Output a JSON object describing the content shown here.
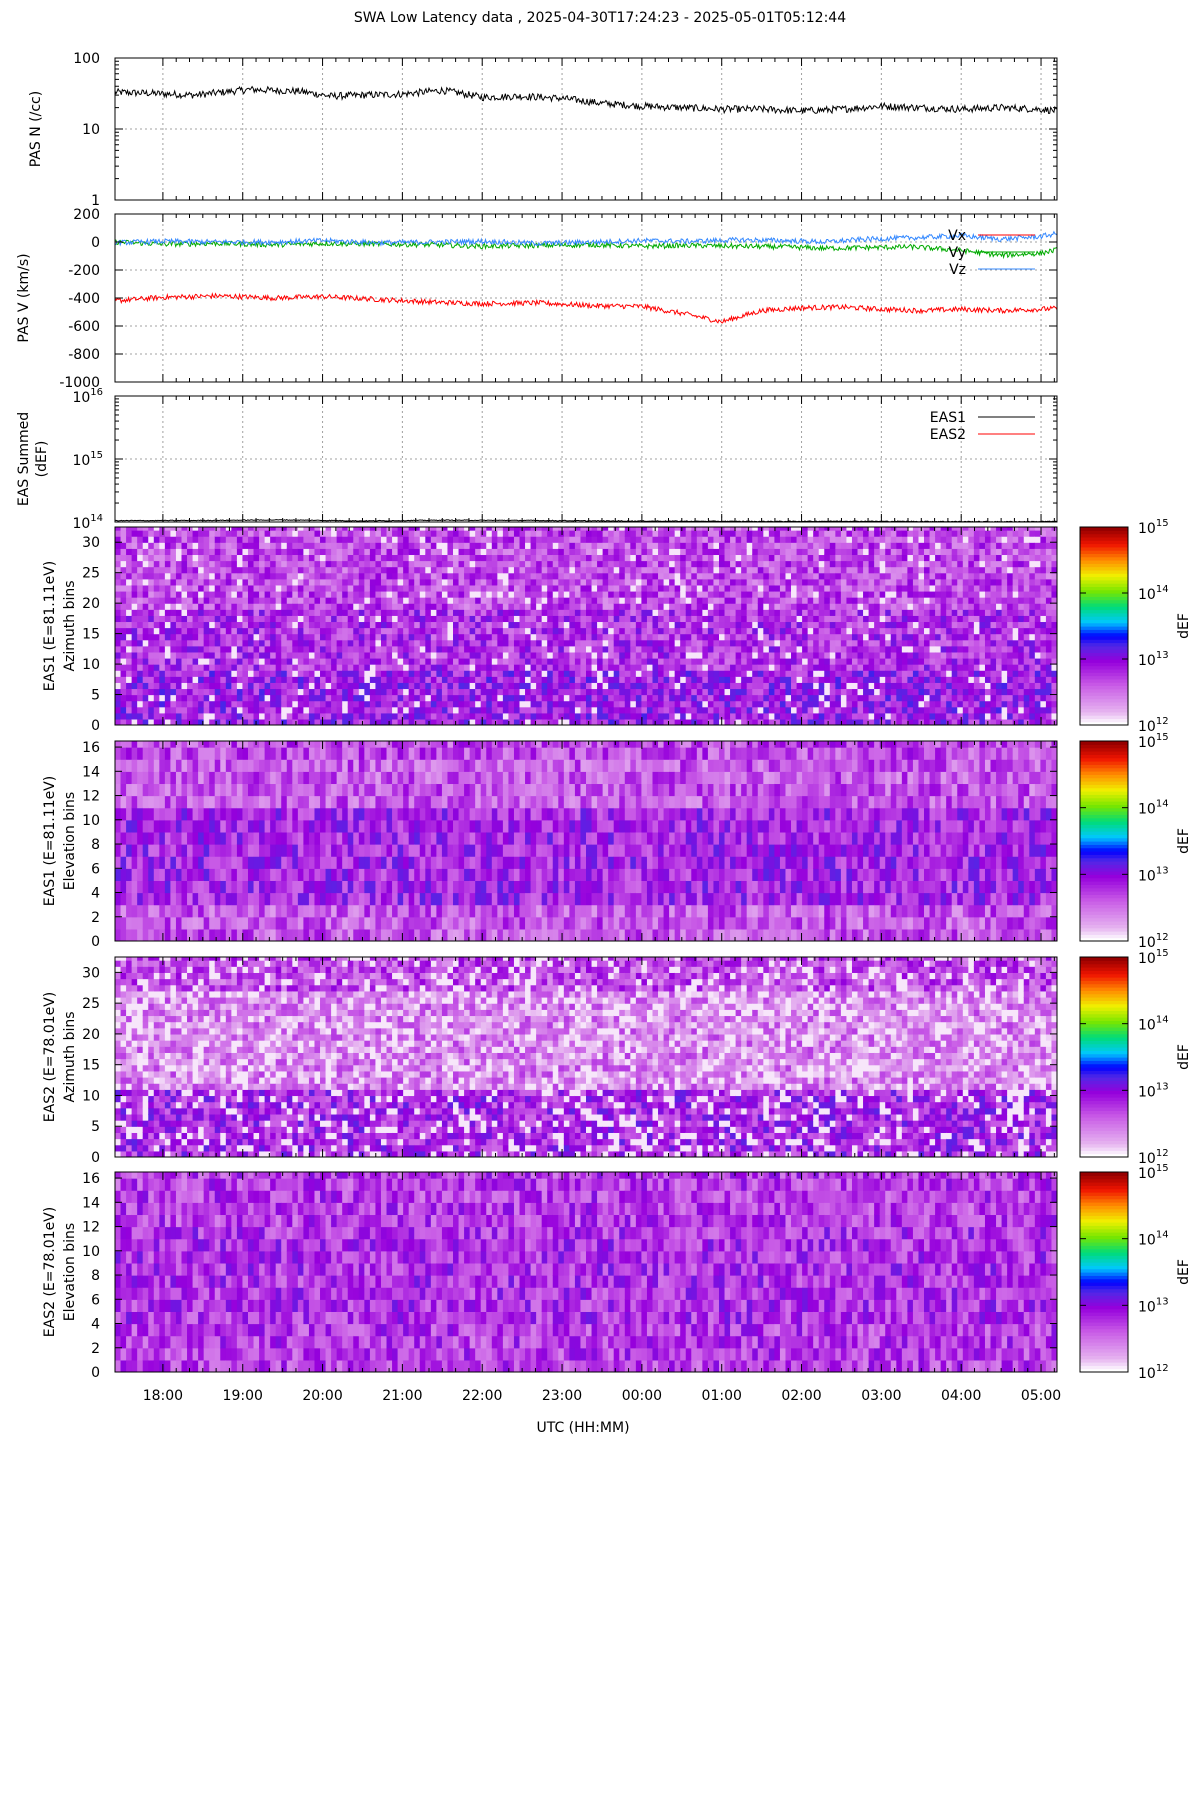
{
  "title": "SWA Low Latency data ,  2025-04-30T17:24:23 - 2025-05-01T05:12:44",
  "xaxis": {
    "label": "UTC (HH:MM)",
    "ticks": [
      "18:00",
      "19:00",
      "20:00",
      "21:00",
      "22:00",
      "23:00",
      "00:00",
      "01:00",
      "02:00",
      "03:00",
      "04:00",
      "05:00"
    ],
    "range_hours": [
      17.4,
      29.2
    ]
  },
  "chart_data": [
    {
      "type": "line",
      "ylabel": "PAS N (/cc)",
      "yscale": "log",
      "ylim": [
        1,
        100
      ],
      "yticks": [
        "1",
        "10",
        "100"
      ],
      "grid": true,
      "series": [
        {
          "color": "#000000",
          "x_hours": [
            17.4,
            17.8,
            18.4,
            19.1,
            19.7,
            20.1,
            20.5,
            21.0,
            21.5,
            22.0,
            22.5,
            23.0,
            23.5,
            24.0,
            24.5,
            25.0,
            25.5,
            26.0,
            26.5,
            27.0,
            27.5,
            28.0,
            28.5,
            29.0,
            29.2
          ],
          "values": [
            33,
            32,
            30,
            36,
            34,
            29,
            30,
            31,
            35,
            28,
            29,
            27,
            23,
            21,
            20,
            19,
            19,
            18,
            19,
            21,
            20,
            19,
            20,
            19,
            18
          ]
        }
      ]
    },
    {
      "type": "line",
      "ylabel": "PAS V (km/s)",
      "ylim": [
        -1000,
        200
      ],
      "yticks": [
        "-1000",
        "-800",
        "-600",
        "-400",
        "-200",
        "0",
        "200"
      ],
      "grid": true,
      "legend_position": "top-right",
      "series": [
        {
          "name": "Vx",
          "color": "#ff0000",
          "x_hours": [
            17.4,
            18.0,
            18.7,
            19.4,
            20.0,
            20.7,
            21.4,
            22.0,
            22.7,
            23.4,
            24.0,
            24.6,
            25.0,
            25.5,
            26.0,
            26.5,
            27.0,
            27.5,
            28.0,
            28.5,
            29.2
          ],
          "values": [
            -420,
            -395,
            -385,
            -400,
            -390,
            -410,
            -430,
            -440,
            -435,
            -455,
            -460,
            -520,
            -570,
            -490,
            -470,
            -465,
            -480,
            -490,
            -480,
            -490,
            -475
          ]
        },
        {
          "name": "Vy",
          "color": "#00aa00",
          "x_hours": [
            17.4,
            18.0,
            18.7,
            19.4,
            20.0,
            20.7,
            21.4,
            22.0,
            22.7,
            23.4,
            24.0,
            24.6,
            25.2,
            25.8,
            26.3,
            26.8,
            27.4,
            28.0,
            28.5,
            29.0,
            29.2
          ],
          "values": [
            0,
            -15,
            -10,
            -20,
            -10,
            -15,
            -20,
            -30,
            -25,
            -20,
            -30,
            -25,
            -30,
            -35,
            -45,
            -40,
            -35,
            -60,
            -95,
            -80,
            -55
          ]
        },
        {
          "name": "Vz",
          "color": "#3388ff",
          "x_hours": [
            17.4,
            18.0,
            18.7,
            19.4,
            20.0,
            20.7,
            21.4,
            22.0,
            22.7,
            23.4,
            24.0,
            24.6,
            25.2,
            25.8,
            26.3,
            26.8,
            27.4,
            28.0,
            28.5,
            29.0,
            29.2
          ],
          "values": [
            -5,
            5,
            0,
            0,
            10,
            -5,
            0,
            5,
            -10,
            0,
            10,
            5,
            15,
            10,
            0,
            20,
            30,
            45,
            20,
            40,
            60
          ]
        }
      ]
    },
    {
      "type": "line",
      "ylabel": "EAS Summed",
      "ylabel2": "(dEF)",
      "yscale": "log",
      "ylim": [
        100000000000000,
        10000000000000000
      ],
      "yticks": [
        {
          "base": "10",
          "exp": "14"
        },
        {
          "base": "10",
          "exp": "15"
        },
        {
          "base": "10",
          "exp": "16"
        }
      ],
      "grid": true,
      "legend_position": "top-right",
      "series": [
        {
          "name": "EAS1",
          "color": "#000000",
          "x_hours": [
            17.4,
            18.5,
            19.5,
            20.5,
            21.5,
            22.5,
            23.5,
            24.5,
            25.5,
            26.5,
            27.5,
            28.5,
            29.2
          ],
          "values": [
            105000000000000,
            106000000000000,
            108000000000000,
            104000000000000,
            107000000000000,
            106000000000000,
            104000000000000,
            103000000000000,
            102000000000000,
            103000000000000,
            102000000000000,
            101000000000000,
            102000000000000
          ]
        },
        {
          "name": "EAS2",
          "color": "#ff0000",
          "x_hours": [],
          "values": []
        }
      ]
    },
    {
      "type": "heatmap",
      "ylabel": "EAS1 (E=81.11eV)",
      "ylabel2": "Azimuth bins",
      "ylim": [
        0,
        32
      ],
      "yticks": [
        "0",
        "5",
        "10",
        "15",
        "20",
        "25",
        "30"
      ],
      "colorbar": {
        "label": "dEF",
        "ticks": [
          {
            "base": "10",
            "exp": "12"
          },
          {
            "base": "10",
            "exp": "13"
          },
          {
            "base": "10",
            "exp": "14"
          },
          {
            "base": "10",
            "exp": "15"
          }
        ]
      }
    },
    {
      "type": "heatmap",
      "ylabel": "EAS1 (E=81.11eV)",
      "ylabel2": "Elevation bins",
      "ylim": [
        0,
        16
      ],
      "yticks": [
        "0",
        "2",
        "4",
        "6",
        "8",
        "10",
        "12",
        "14",
        "16"
      ],
      "colorbar": {
        "label": "dEF",
        "ticks": [
          {
            "base": "10",
            "exp": "12"
          },
          {
            "base": "10",
            "exp": "13"
          },
          {
            "base": "10",
            "exp": "14"
          },
          {
            "base": "10",
            "exp": "15"
          }
        ]
      }
    },
    {
      "type": "heatmap",
      "ylabel": "EAS2 (E=78.01eV)",
      "ylabel2": "Azimuth bins",
      "ylim": [
        0,
        32
      ],
      "yticks": [
        "0",
        "5",
        "10",
        "15",
        "20",
        "25",
        "30"
      ],
      "colorbar": {
        "label": "dEF",
        "ticks": [
          {
            "base": "10",
            "exp": "12"
          },
          {
            "base": "10",
            "exp": "13"
          },
          {
            "base": "10",
            "exp": "14"
          },
          {
            "base": "10",
            "exp": "15"
          }
        ]
      }
    },
    {
      "type": "heatmap",
      "ylabel": "EAS2 (E=78.01eV)",
      "ylabel2": "Elevation bins",
      "ylim": [
        0,
        16
      ],
      "yticks": [
        "0",
        "2",
        "4",
        "6",
        "8",
        "10",
        "12",
        "14",
        "16"
      ],
      "colorbar": {
        "label": "dEF",
        "ticks": [
          {
            "base": "10",
            "exp": "12"
          },
          {
            "base": "10",
            "exp": "13"
          },
          {
            "base": "10",
            "exp": "14"
          },
          {
            "base": "10",
            "exp": "15"
          }
        ]
      }
    }
  ]
}
